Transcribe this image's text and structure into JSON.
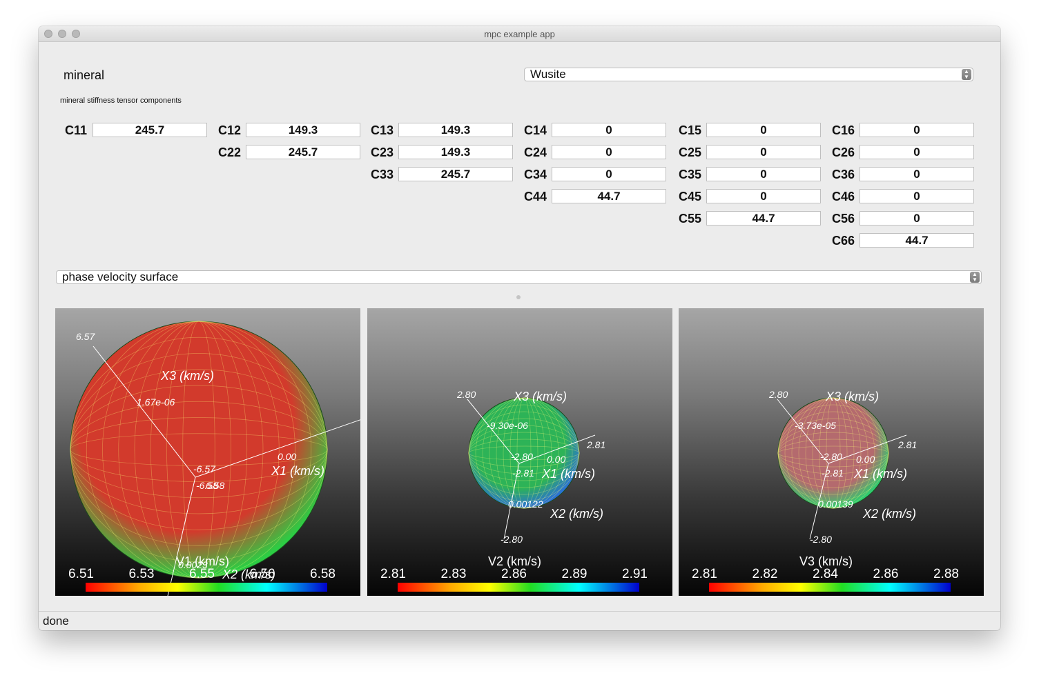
{
  "window": {
    "title": "mpc example app"
  },
  "mineral": {
    "label": "mineral",
    "selected": "Wusite"
  },
  "tensor": {
    "section_label": "mineral stiffness tensor components",
    "components": [
      {
        "name": "C11",
        "value": "245.7"
      },
      {
        "name": "C12",
        "value": "149.3"
      },
      {
        "name": "C13",
        "value": "149.3"
      },
      {
        "name": "C14",
        "value": "0"
      },
      {
        "name": "C15",
        "value": "0"
      },
      {
        "name": "C16",
        "value": "0"
      },
      {
        "name": "C22",
        "value": "245.7"
      },
      {
        "name": "C23",
        "value": "149.3"
      },
      {
        "name": "C24",
        "value": "0"
      },
      {
        "name": "C25",
        "value": "0"
      },
      {
        "name": "C26",
        "value": "0"
      },
      {
        "name": "C33",
        "value": "245.7"
      },
      {
        "name": "C34",
        "value": "0"
      },
      {
        "name": "C35",
        "value": "0"
      },
      {
        "name": "C36",
        "value": "0"
      },
      {
        "name": "C44",
        "value": "44.7"
      },
      {
        "name": "C45",
        "value": "0"
      },
      {
        "name": "C46",
        "value": "0"
      },
      {
        "name": "C55",
        "value": "44.7"
      },
      {
        "name": "C56",
        "value": "0"
      },
      {
        "name": "C66",
        "value": "44.7"
      }
    ]
  },
  "plot_type": {
    "selected": "phase velocity surface"
  },
  "panels": [
    {
      "colorbar_title": "V1 (km/s)",
      "colorbar_ticks": [
        "6.51",
        "6.53",
        "6.55",
        "6.56",
        "6.58"
      ],
      "axis_labels": [
        "X3 (km/s)",
        "X1 (km/s)",
        "X2 (km/s)"
      ],
      "annotations": [
        "6.57",
        "1.67e-06",
        "-6.57",
        "0.00",
        "-6.58",
        "6.58",
        "0.0023"
      ],
      "colors": {
        "main": "#d23a2c",
        "accent": "#2ccd44"
      }
    },
    {
      "colorbar_title": "V2 (km/s)",
      "colorbar_ticks": [
        "2.81",
        "2.83",
        "2.86",
        "2.89",
        "2.91"
      ],
      "axis_labels": [
        "X3 (km/s)",
        "X1 (km/s)",
        "X2 (km/s)"
      ],
      "annotations": [
        "2.80",
        "-9.30e-06",
        "2.81",
        "-2.80",
        "0.00",
        "-2.81",
        "0.00122",
        "-2.80"
      ],
      "colors": {
        "main": "#2db357",
        "accent": "#2a6fd6"
      }
    },
    {
      "colorbar_title": "V3 (km/s)",
      "colorbar_ticks": [
        "2.81",
        "2.82",
        "2.84",
        "2.86",
        "2.88"
      ],
      "axis_labels": [
        "X3 (km/s)",
        "X1 (km/s)",
        "X2 (km/s)"
      ],
      "annotations": [
        "2.80",
        "-3.73e-05",
        "2.81",
        "-2.80",
        "0.00",
        "-2.81",
        "0.00139",
        "-2.80"
      ],
      "colors": {
        "main": "#b46a6e",
        "accent": "#2ccd70"
      }
    }
  ],
  "status": {
    "text": "done"
  }
}
